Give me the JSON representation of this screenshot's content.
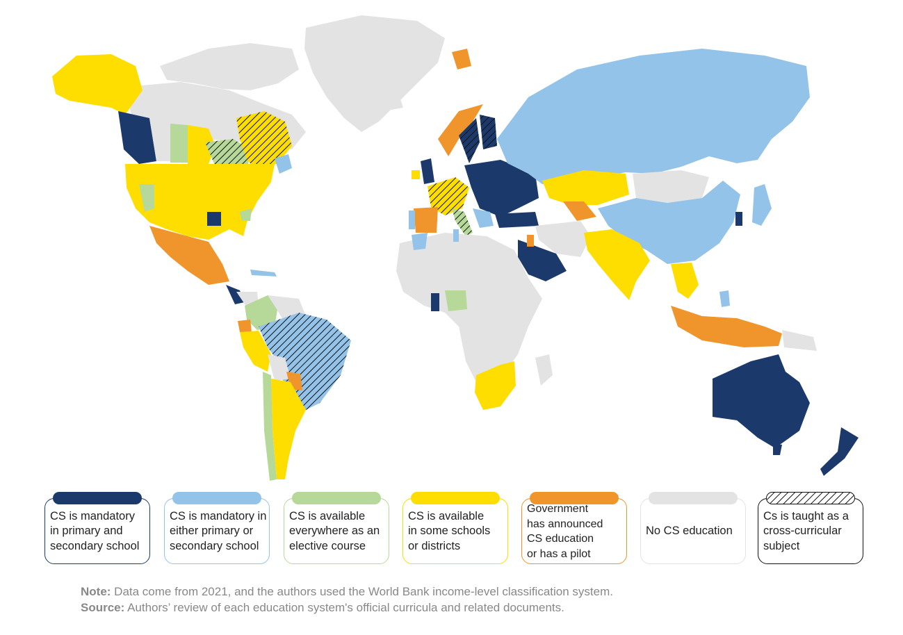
{
  "colors": {
    "mandatory_both": "#1b3a6b",
    "mandatory_either": "#94c3ea",
    "elective_everywhere": "#b6d898",
    "some_schools": "#fedd00",
    "announced_pilot": "#f0952b",
    "none": "#e3e3e3",
    "cross_curricular_border": "#111111"
  },
  "legend": [
    {
      "key": "mandatory_both",
      "label": "CS is mandatory\nin primary and\nsecondary school",
      "fill": "#1b3a6b",
      "border": "#1b3a6b",
      "pattern": false
    },
    {
      "key": "mandatory_either",
      "label": "CS is mandatory in\neither primary or\nsecondary school",
      "fill": "#94c3ea",
      "border": "#94c3ea",
      "pattern": false
    },
    {
      "key": "elective_everywhere",
      "label": "CS is available\neverywhere as an\nelective course",
      "fill": "#b6d898",
      "border": "#b6d898",
      "pattern": false
    },
    {
      "key": "some_schools",
      "label": "CS is available\nin some schools\nor districts",
      "fill": "#fedd00",
      "border": "#fedd00",
      "pattern": false
    },
    {
      "key": "announced_pilot",
      "label": "Government\nhas announced\nCS education\nor has a pilot",
      "fill": "#f0952b",
      "border": "#f0952b",
      "pattern": false
    },
    {
      "key": "none",
      "label": "No CS education",
      "fill": "#e3e3e3",
      "border": "#e3e3e3",
      "pattern": false
    },
    {
      "key": "cross_curricular",
      "label": "Cs is taught as a\ncross-curricular\nsubject",
      "fill": "#ffffff",
      "border": "#111111",
      "pattern": true
    }
  ],
  "note": {
    "label": "Note:",
    "text": " Data come from 2021, and the authors used the World Bank income-level classification system."
  },
  "source": {
    "label": "Source:",
    "text": " Authors’ review of each education system's official curricula and related documents."
  }
}
